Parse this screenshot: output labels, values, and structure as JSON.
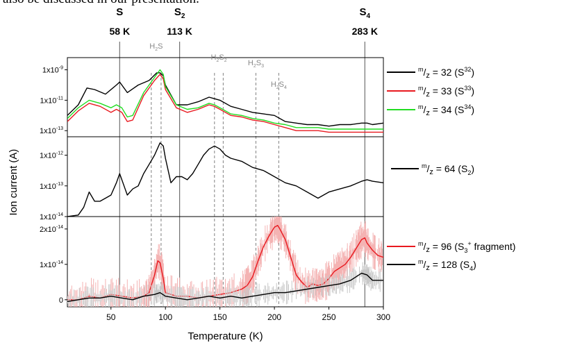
{
  "intro_text": "also be discussed in our presentation.",
  "chart_data": {
    "type": "line",
    "xlabel": "Temperature (K)",
    "ylabel": "Ion current (A)",
    "xlim": [
      10,
      300
    ],
    "x_ticks": [
      "50",
      "100",
      "150",
      "200",
      "250",
      "300"
    ],
    "x_tick_values": [
      50,
      100,
      150,
      200,
      250,
      300
    ],
    "colors": {
      "black": "#000000",
      "red": "#e8191f",
      "green": "#22dd22",
      "red_shade": "#f4b3b3",
      "grey_shade": "#c8c8c8",
      "ref_line": "#707070",
      "dash_line": "#808080"
    },
    "peaks": [
      {
        "line1": "S",
        "line2": "58 K",
        "x": 58
      },
      {
        "line1": "S2",
        "line2": "113 K",
        "x": 113
      },
      {
        "line1": "S4",
        "line2": "283 K",
        "x": 283
      }
    ],
    "species": [
      {
        "label": "H2S",
        "x": [
          87,
          96
        ]
      },
      {
        "label": "H2S2",
        "x": [
          145,
          153
        ]
      },
      {
        "label": "H2S3",
        "x": [
          183
        ]
      },
      {
        "label": "H2S4",
        "x": [
          204
        ]
      }
    ],
    "panels": [
      {
        "scale": "log",
        "y_ticks": [
          "1x10-9",
          "1x10-11",
          "1x10-13"
        ],
        "y_tick_exponents": [
          -9,
          -11,
          -13
        ],
        "ylim_exp": [
          -13.4,
          -8.2
        ],
        "series": [
          {
            "name": "m/z = 32 (S32)",
            "color": "#000000",
            "x": [
              10,
              20,
              28,
              35,
              45,
              55,
              58,
              65,
              75,
              85,
              92,
              95,
              98,
              100,
              110,
              120,
              130,
              140,
              145,
              150,
              160,
              170,
              180,
              190,
              200,
              210,
              220,
              230,
              240,
              250,
              260,
              270,
              280,
              285,
              290,
              300
            ],
            "y": [
              -12.0,
              -11.3,
              -10.2,
              -10.3,
              -10.6,
              -10.0,
              -9.8,
              -10.5,
              -10.0,
              -9.7,
              -9.2,
              -9.2,
              -9.4,
              -10.0,
              -11.3,
              -11.3,
              -11.1,
              -10.8,
              -10.9,
              -11.0,
              -11.4,
              -11.6,
              -11.8,
              -11.9,
              -12.0,
              -12.4,
              -12.5,
              -12.6,
              -12.6,
              -12.7,
              -12.6,
              -12.6,
              -12.5,
              -12.5,
              -12.6,
              -12.5
            ]
          },
          {
            "name": "m/z = 33 (S33)",
            "color": "#e8191f",
            "x": [
              10,
              20,
              30,
              40,
              50,
              55,
              60,
              65,
              70,
              80,
              90,
              95,
              98,
              100,
              110,
              120,
              130,
              140,
              145,
              150,
              160,
              170,
              180,
              190,
              200,
              210,
              220,
              230,
              240,
              250,
              260,
              270,
              280,
              285,
              290,
              300
            ],
            "y": [
              -12.4,
              -11.7,
              -11.2,
              -11.4,
              -11.8,
              -11.6,
              -11.8,
              -12.4,
              -12.3,
              -10.7,
              -9.7,
              -9.3,
              -9.6,
              -10.3,
              -11.5,
              -11.8,
              -11.6,
              -11.3,
              -11.4,
              -11.6,
              -12.0,
              -12.1,
              -12.3,
              -12.4,
              -12.6,
              -12.8,
              -13.0,
              -13.0,
              -13.0,
              -13.1,
              -13.1,
              -13.1,
              -13.1,
              -13.1,
              -13.1,
              -13.1
            ]
          },
          {
            "name": "m/z = 34 (S34)",
            "color": "#22dd22",
            "x": [
              10,
              20,
              30,
              40,
              50,
              55,
              60,
              65,
              70,
              80,
              90,
              95,
              98,
              100,
              110,
              120,
              130,
              140,
              145,
              150,
              160,
              170,
              180,
              190,
              200,
              210,
              220,
              230,
              240,
              250,
              260,
              270,
              280,
              285,
              290,
              300
            ],
            "y": [
              -12.2,
              -11.5,
              -11.0,
              -11.2,
              -11.5,
              -11.3,
              -11.5,
              -12.1,
              -12.0,
              -10.5,
              -9.5,
              -9.0,
              -9.3,
              -10.1,
              -11.3,
              -11.6,
              -11.5,
              -11.2,
              -11.3,
              -11.5,
              -11.9,
              -12.0,
              -12.2,
              -12.3,
              -12.5,
              -12.6,
              -12.8,
              -12.8,
              -12.8,
              -12.9,
              -12.9,
              -12.9,
              -12.9,
              -12.9,
              -12.9,
              -12.9
            ]
          }
        ]
      },
      {
        "scale": "log",
        "y_ticks": [
          "1x10-12",
          "1x10-13",
          "1x10-14"
        ],
        "y_tick_exponents": [
          -12,
          -13,
          -14
        ],
        "ylim_exp": [
          -14.0,
          -11.4
        ],
        "series": [
          {
            "name": "m/z = 64 (S2)",
            "color": "#000000",
            "x": [
              10,
              20,
              25,
              30,
              35,
              40,
              45,
              50,
              55,
              58,
              62,
              65,
              70,
              75,
              80,
              85,
              90,
              95,
              98,
              100,
              105,
              110,
              115,
              120,
              125,
              130,
              135,
              140,
              145,
              150,
              155,
              160,
              170,
              180,
              190,
              200,
              210,
              220,
              230,
              240,
              250,
              260,
              270,
              280,
              285,
              290,
              300
            ],
            "y": [
              -14.0,
              -13.95,
              -13.7,
              -13.2,
              -13.5,
              -13.5,
              -13.4,
              -13.3,
              -12.9,
              -12.6,
              -13.0,
              -13.3,
              -13.1,
              -13.0,
              -12.6,
              -12.3,
              -12.0,
              -11.6,
              -11.7,
              -12.1,
              -12.9,
              -12.7,
              -12.7,
              -12.8,
              -12.6,
              -12.3,
              -12.0,
              -11.8,
              -11.7,
              -11.8,
              -12.0,
              -12.1,
              -12.2,
              -12.4,
              -12.5,
              -12.7,
              -12.9,
              -13.0,
              -13.2,
              -13.4,
              -13.2,
              -13.1,
              -13.0,
              -12.85,
              -12.8,
              -12.85,
              -12.9
            ]
          }
        ]
      },
      {
        "scale": "linear",
        "y_ticks": [
          "2x10-14",
          "1x10-14",
          "0"
        ],
        "y_tick_values": [
          2e-14,
          1e-14,
          0
        ],
        "ylim": [
          -2e-15,
          2.35e-14
        ],
        "series": [
          {
            "name": "m/z = 96 (S3+ fragment)",
            "color": "#e8191f",
            "x": [
              10,
              20,
              30,
              40,
              50,
              60,
              70,
              80,
              85,
              90,
              93,
              95,
              98,
              100,
              110,
              120,
              130,
              140,
              150,
              160,
              170,
              175,
              180,
              185,
              190,
              195,
              200,
              203,
              205,
              210,
              215,
              220,
              225,
              230,
              235,
              240,
              245,
              250,
              255,
              260,
              265,
              270,
              275,
              280,
              283,
              285,
              290,
              295,
              300
            ],
            "y": [
              0.0,
              0.0,
              1e-15,
              5e-16,
              1.5e-15,
              1e-15,
              5e-16,
              1e-15,
              2e-15,
              7e-15,
              1.1e-14,
              1.05e-14,
              6e-15,
              2e-15,
              1e-15,
              1e-15,
              5e-16,
              1e-15,
              1.5e-15,
              2e-15,
              3e-15,
              4e-15,
              6.5e-15,
              1.1e-14,
              1.5e-14,
              1.8e-14,
              2.05e-14,
              2.1e-14,
              2e-14,
              1.7e-14,
              1.2e-14,
              7e-15,
              5e-15,
              3.5e-15,
              4.5e-15,
              4e-15,
              4.5e-15,
              6e-15,
              8e-15,
              9e-15,
              1e-14,
              1.2e-14,
              1.45e-14,
              1.7e-14,
              1.75e-14,
              1.6e-14,
              1.4e-14,
              1.25e-14,
              1.2e-14
            ]
          },
          {
            "name": "m/z = 128 (S4)",
            "color": "#000000",
            "x": [
              10,
              20,
              30,
              40,
              50,
              60,
              70,
              80,
              90,
              95,
              100,
              110,
              120,
              130,
              140,
              150,
              160,
              170,
              180,
              190,
              200,
              210,
              220,
              230,
              240,
              250,
              260,
              270,
              280,
              285,
              290,
              300
            ],
            "y": [
              -5e-16,
              0.0,
              5e-16,
              5e-16,
              1e-15,
              5e-16,
              0.0,
              1e-15,
              1.5e-15,
              2e-15,
              1e-15,
              5e-16,
              0.0,
              5e-16,
              1e-15,
              5e-16,
              1e-15,
              5e-16,
              1e-15,
              1.5e-15,
              2e-15,
              2e-15,
              2.5e-15,
              3e-15,
              3.5e-15,
              4e-15,
              4.5e-15,
              5.5e-15,
              7.5e-15,
              7e-15,
              5.5e-15,
              5.5e-15
            ]
          }
        ]
      }
    ],
    "legend": [
      {
        "panel": 0,
        "series": 0,
        "mz": "32",
        "name": "S",
        "sup": "32"
      },
      {
        "panel": 0,
        "series": 1,
        "mz": "33",
        "name": "S",
        "sup": "33"
      },
      {
        "panel": 0,
        "series": 2,
        "mz": "34",
        "name": "S",
        "sup": "34"
      },
      {
        "panel": 1,
        "series": 0,
        "mz": "64",
        "name": "S",
        "sub": "2"
      },
      {
        "panel": 2,
        "series": 0,
        "mz": "96",
        "name": "S",
        "sub": "3",
        "sup": "+",
        "tail": " fragment"
      },
      {
        "panel": 2,
        "series": 1,
        "mz": "128",
        "name": "S",
        "sub": "4"
      }
    ]
  }
}
